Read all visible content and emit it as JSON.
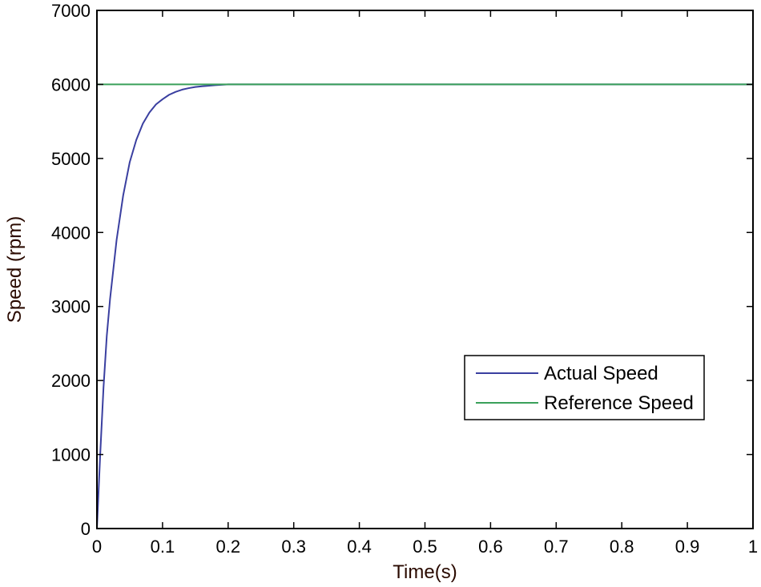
{
  "chart_data": {
    "type": "line",
    "title": "",
    "xlabel": "Time(s)",
    "ylabel": "Speed (rpm)",
    "xlim": [
      0,
      1
    ],
    "ylim": [
      0,
      7000
    ],
    "xticks": [
      0,
      0.1,
      0.2,
      0.3,
      0.4,
      0.5,
      0.6,
      0.7,
      0.8,
      0.9,
      1
    ],
    "xtick_labels": [
      "0",
      "0.1",
      "0.2",
      "0.3",
      "0.4",
      "0.5",
      "0.6",
      "0.7",
      "0.8",
      "0.9",
      "1"
    ],
    "yticks": [
      0,
      1000,
      2000,
      3000,
      4000,
      5000,
      6000,
      7000
    ],
    "ytick_labels": [
      "0",
      "1000",
      "2000",
      "3000",
      "4000",
      "5000",
      "6000",
      "7000"
    ],
    "grid": false,
    "legend_position": "center-right",
    "series": [
      {
        "name": "Actual Speed",
        "color": "#3a3fa0",
        "x": [
          0,
          0.005,
          0.01,
          0.015,
          0.02,
          0.03,
          0.04,
          0.05,
          0.06,
          0.07,
          0.08,
          0.09,
          0.1,
          0.11,
          0.12,
          0.13,
          0.14,
          0.15,
          0.16,
          0.18,
          0.2,
          0.25,
          0.3,
          0.4,
          0.5,
          0.6,
          0.7,
          0.8,
          0.9,
          1.0
        ],
        "y": [
          0,
          1000,
          1900,
          2600,
          3100,
          3900,
          4500,
          4950,
          5250,
          5470,
          5620,
          5730,
          5800,
          5860,
          5900,
          5930,
          5950,
          5965,
          5975,
          5990,
          6000,
          6000,
          6000,
          6000,
          6000,
          6000,
          6000,
          6000,
          6000,
          6000
        ]
      },
      {
        "name": "Reference Speed",
        "color": "#3aa05a",
        "x": [
          0,
          1
        ],
        "y": [
          6000,
          6000
        ]
      }
    ]
  }
}
